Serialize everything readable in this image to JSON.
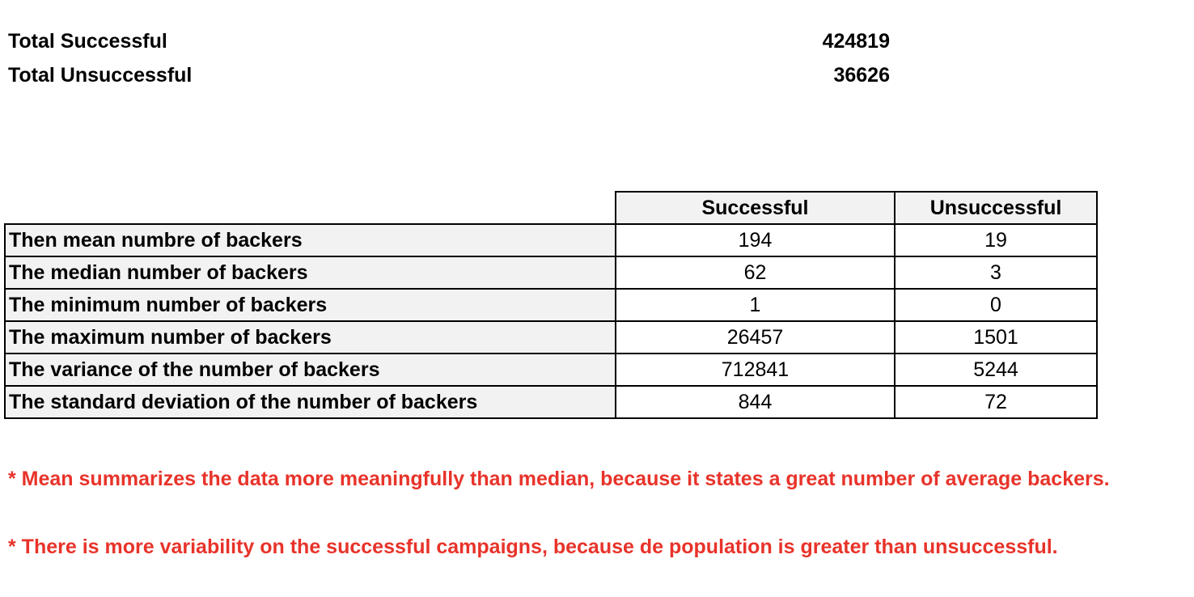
{
  "totals": {
    "successful_label": "Total Successful",
    "successful_value": "424819",
    "unsuccessful_label": "Total Unsuccessful",
    "unsuccessful_value": "36626"
  },
  "stats_table": {
    "headers": [
      "Successful",
      "Unsuccessful"
    ],
    "rows": [
      {
        "label": "Then mean numbre of backers",
        "successful": "194",
        "unsuccessful": "19"
      },
      {
        "label": "The median number of backers",
        "successful": "62",
        "unsuccessful": "3"
      },
      {
        "label": "The minimum number of backers",
        "successful": "1",
        "unsuccessful": "0"
      },
      {
        "label": "The maximum number of backers",
        "successful": "26457",
        "unsuccessful": "1501"
      },
      {
        "label": "The variance of the number of backers",
        "successful": "712841",
        "unsuccessful": "5244"
      },
      {
        "label": "The standard deviation of the number of backers",
        "successful": "844",
        "unsuccessful": "72"
      }
    ]
  },
  "notes": [
    "* Mean summarizes the data more meaningfully than median, because it states a great number of average backers.",
    "* There is more variability on the successful campaigns, because de population is greater than unsuccessful."
  ],
  "colors": {
    "note_text": "#e8332a",
    "label_cell_bg": "#f2f2f2"
  }
}
